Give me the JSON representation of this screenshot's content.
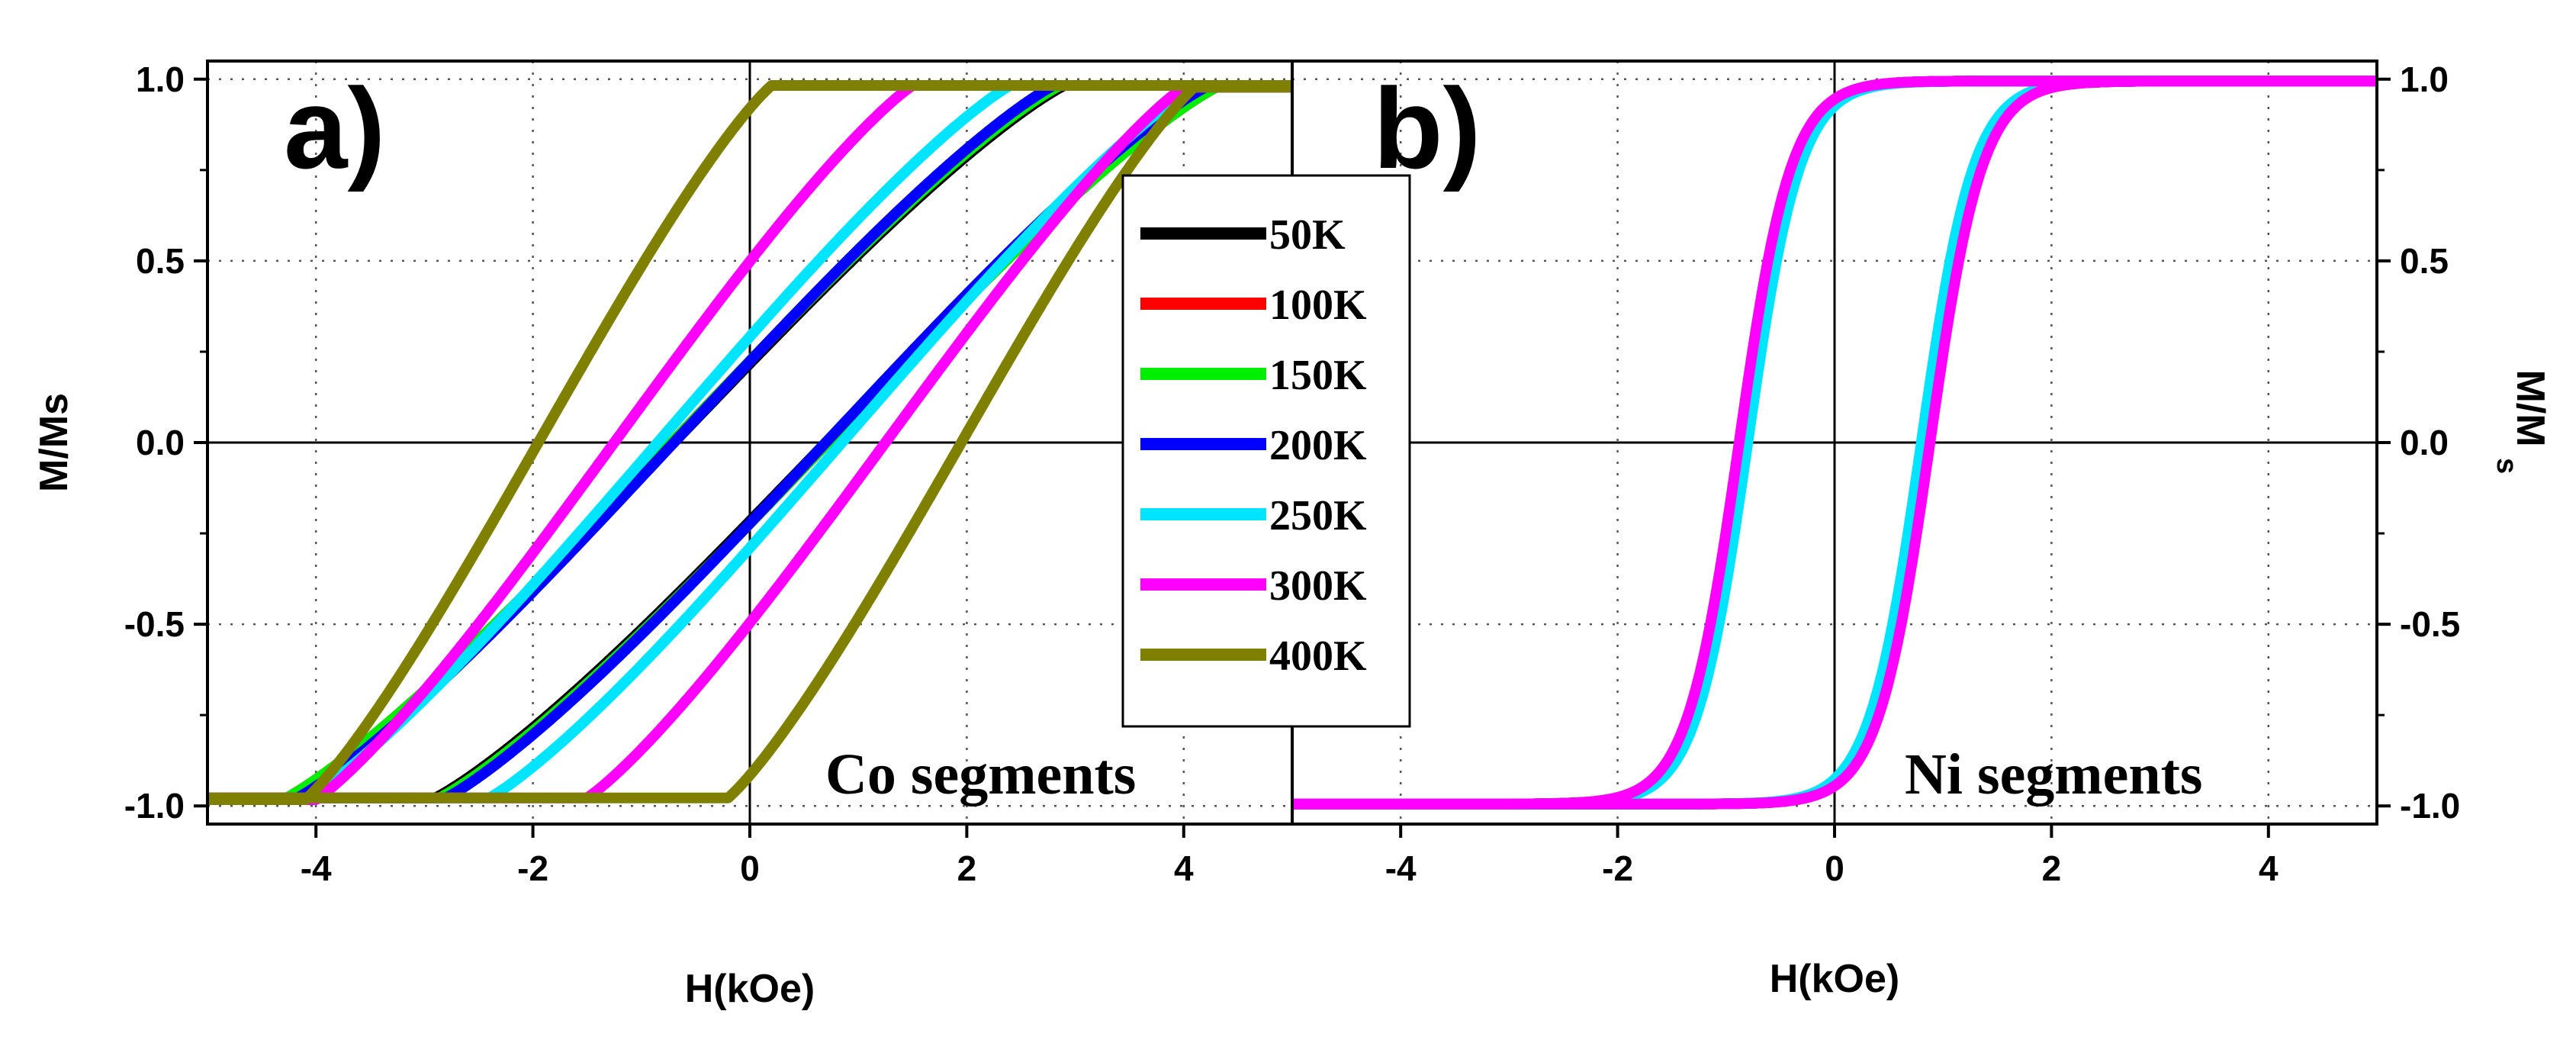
{
  "chart_data": [
    {
      "id": "a",
      "type": "line",
      "panel_label": "a)",
      "annotation": "Co segments",
      "xlabel": "H(kOe)",
      "ylabel": "M/Ms",
      "xlim": [
        -5,
        5
      ],
      "ylim": [
        -1.05,
        1.05
      ],
      "xticks": [
        -4,
        -2,
        0,
        2,
        4
      ],
      "xtick_labels": [
        "-4",
        "-2",
        "0",
        "2",
        "4"
      ],
      "yticks": [
        -1.0,
        -0.5,
        0.0,
        0.5,
        1.0
      ],
      "ytick_labels": [
        "-1.0",
        "-0.5",
        "0.0",
        "0.5",
        "1.0"
      ],
      "ytick_side": "left",
      "grid": true,
      "loop_shape": "co",
      "series": [
        {
          "name": "50K",
          "color": "#000000",
          "coercivity_kOe": 0.7,
          "saturation_field_kOe": 4.3
        },
        {
          "name": "100K",
          "color": "#ff0000",
          "coercivity_kOe": 0.72,
          "saturation_field_kOe": 4.3
        },
        {
          "name": "150K",
          "color": "#00ee00",
          "coercivity_kOe": 0.72,
          "saturation_field_kOe": 4.3
        },
        {
          "name": "200K",
          "color": "#0000ff",
          "coercivity_kOe": 0.7,
          "saturation_field_kOe": 4.2
        },
        {
          "name": "250K",
          "color": "#00e5ff",
          "coercivity_kOe": 0.85,
          "saturation_field_kOe": 4.1
        },
        {
          "name": "300K",
          "color": "#ff00ff",
          "coercivity_kOe": 1.25,
          "saturation_field_kOe": 4.0
        },
        {
          "name": "400K",
          "color": "#808000",
          "coercivity_kOe": 1.95,
          "saturation_field_kOe": 4.1
        }
      ]
    },
    {
      "id": "b",
      "type": "line",
      "panel_label": "b)",
      "annotation": "Ni segments",
      "xlabel": "H(kOe)",
      "ylabel": "M/M",
      "ylabel_subscript": "s",
      "xlim": [
        -5,
        5
      ],
      "ylim": [
        -1.05,
        1.05
      ],
      "xticks": [
        -4,
        -2,
        0,
        2,
        4
      ],
      "xtick_labels": [
        "-4",
        "-2",
        "0",
        "2",
        "4"
      ],
      "yticks": [
        -1.0,
        -0.5,
        0.0,
        0.5,
        1.0
      ],
      "ytick_labels": [
        "-1.0",
        "-0.5",
        "0.0",
        "0.5",
        "1.0"
      ],
      "ytick_side": "right",
      "grid": true,
      "loop_shape": "ni",
      "series": [
        {
          "name": "50K",
          "color": "#000000",
          "coercivity_kOe": 0.87
        },
        {
          "name": "100K",
          "color": "#ff0000",
          "coercivity_kOe": 0.87
        },
        {
          "name": "150K",
          "color": "#00ee00",
          "coercivity_kOe": 0.85
        },
        {
          "name": "200K",
          "color": "#0000ff",
          "coercivity_kOe": 0.85
        },
        {
          "name": "250K",
          "color": "#00e5ff",
          "coercivity_kOe": 0.8
        },
        {
          "name": "300K",
          "color": "#ff00ff",
          "coercivity_kOe": 0.88
        }
      ]
    }
  ],
  "legend": {
    "placement": "center",
    "entries": [
      {
        "label": "50K",
        "color": "#000000"
      },
      {
        "label": "100K",
        "color": "#ff0000"
      },
      {
        "label": "150K",
        "color": "#00ee00"
      },
      {
        "label": "200K",
        "color": "#0000ff"
      },
      {
        "label": "250K",
        "color": "#00e5ff"
      },
      {
        "label": "300K",
        "color": "#ff00ff"
      },
      {
        "label": "400K",
        "color": "#808000"
      }
    ]
  }
}
